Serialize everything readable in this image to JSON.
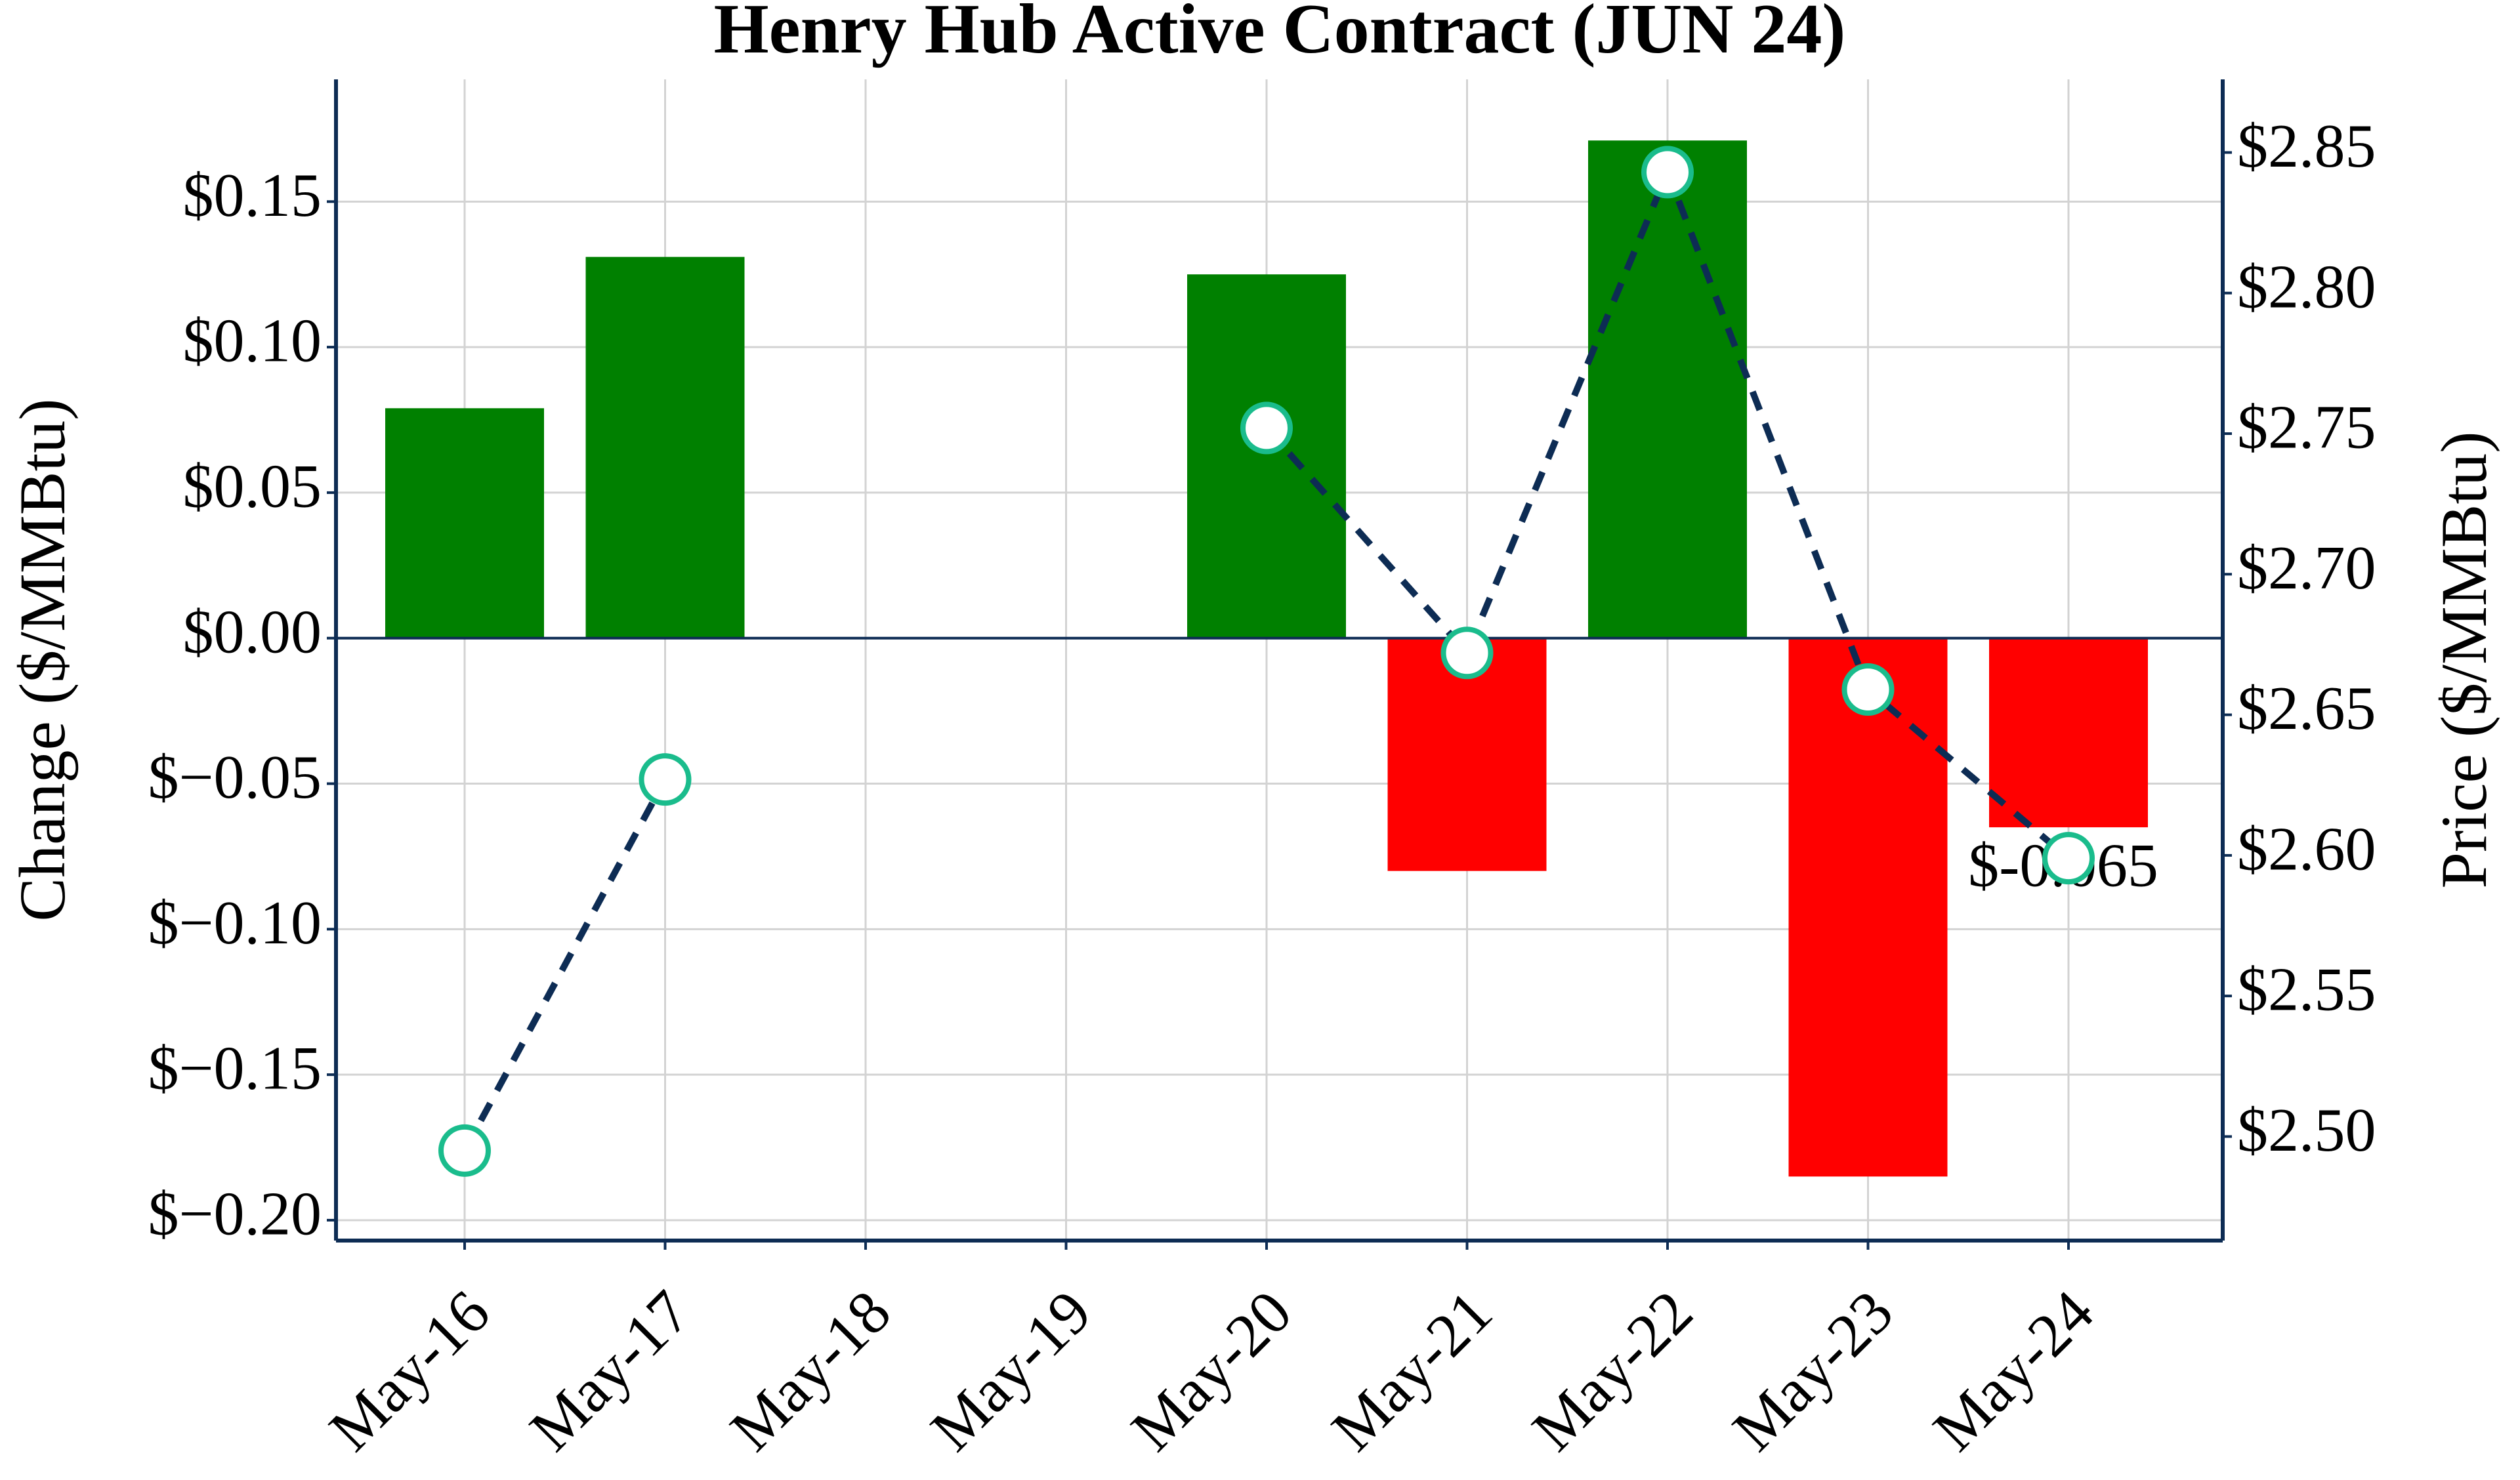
{
  "chart_data": {
    "type": "bar",
    "title": "Henry Hub Active Contract (JUN 24)",
    "ylabel": "Change ($/MMBtu)",
    "y2label": "Price ($/MMBtu)",
    "categories": [
      "May-16",
      "May-17",
      "May-18",
      "May-19",
      "May-20",
      "May-21",
      "May-22",
      "May-23",
      "May-24"
    ],
    "series": [
      {
        "type": "bar",
        "values": [
          0.079,
          0.131,
          null,
          null,
          0.125,
          -0.08,
          0.171,
          -0.185,
          -0.065
        ],
        "colors": [
          "#008000",
          "#008000",
          null,
          null,
          "#008000",
          "#ff0000",
          "#008000",
          "#ff0000",
          "#ff0000"
        ],
        "value_labels": [
          null,
          null,
          null,
          null,
          null,
          null,
          null,
          null,
          "$-0.065"
        ]
      },
      {
        "type": "line",
        "axis": "y2",
        "values": [
          2.495,
          2.627,
          null,
          null,
          2.752,
          2.672,
          2.843,
          2.659,
          2.599
        ],
        "color": "#0d2c54",
        "marker_edge": "#1abc8c",
        "dashed": true
      }
    ],
    "ylim": [
      -0.207,
      0.192
    ],
    "yticks": [
      {
        "value": -0.2,
        "label": "$−0.20"
      },
      {
        "value": -0.15,
        "label": "$−0.15"
      },
      {
        "value": -0.1,
        "label": "$−0.10"
      },
      {
        "value": -0.05,
        "label": "$−0.05"
      },
      {
        "value": 0.0,
        "label": "$0.00"
      },
      {
        "value": 0.05,
        "label": "$0.05"
      },
      {
        "value": 0.1,
        "label": "$0.10"
      },
      {
        "value": 0.15,
        "label": "$0.15"
      }
    ],
    "y2lim": [
      2.463,
      2.876
    ],
    "y2ticks": [
      {
        "value": 2.5,
        "label": "$2.50"
      },
      {
        "value": 2.55,
        "label": "$2.55"
      },
      {
        "value": 2.6,
        "label": "$2.60"
      },
      {
        "value": 2.65,
        "label": "$2.65"
      },
      {
        "value": 2.7,
        "label": "$2.70"
      },
      {
        "value": 2.75,
        "label": "$2.75"
      },
      {
        "value": 2.8,
        "label": "$2.80"
      },
      {
        "value": 2.85,
        "label": "$2.85"
      }
    ],
    "grid": true
  }
}
